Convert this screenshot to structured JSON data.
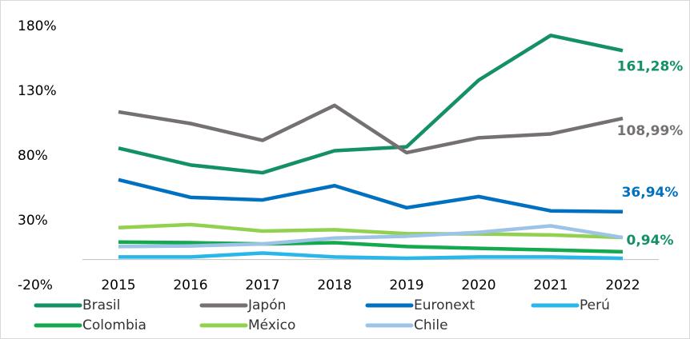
{
  "chart_data": {
    "type": "line",
    "categories": [
      "2015",
      "2016",
      "2017",
      "2018",
      "2019",
      "2020",
      "2021",
      "2022"
    ],
    "ylim": [
      -20,
      180
    ],
    "yticks": [
      {
        "value": -20,
        "label": "-20%"
      },
      {
        "value": 30,
        "label": "30%"
      },
      {
        "value": 80,
        "label": "80%"
      },
      {
        "value": 130,
        "label": "130%"
      },
      {
        "value": 180,
        "label": "180%"
      }
    ],
    "grid": false,
    "legend": "bottom",
    "series": [
      {
        "name": "Brasil",
        "color": "#139066",
        "values": [
          86,
          73,
          67,
          84,
          87,
          138.5,
          173,
          161.28
        ],
        "value_labels": [
          null,
          null,
          null,
          null,
          null,
          null,
          null,
          "161,28%"
        ]
      },
      {
        "name": "Japón",
        "color": "#767171",
        "values": [
          114,
          105,
          92,
          119,
          82.5,
          94,
          97,
          108.99
        ],
        "value_labels": [
          null,
          null,
          null,
          null,
          null,
          null,
          null,
          "108,99%"
        ]
      },
      {
        "name": "Euronext",
        "color": "#0070c0",
        "values": [
          61.6,
          48,
          46,
          57,
          40,
          48.6,
          37.6,
          36.94
        ],
        "value_labels": [
          null,
          null,
          null,
          null,
          null,
          null,
          null,
          "36,94%"
        ]
      },
      {
        "name": "Perú",
        "color": "#29b6e8",
        "values": [
          2,
          2,
          5,
          2,
          1,
          2,
          2,
          0.94
        ],
        "value_labels": [
          null,
          null,
          null,
          null,
          null,
          null,
          null,
          "0,94%"
        ]
      },
      {
        "name": "Colombia",
        "color": "#14a84f",
        "values": [
          13.5,
          13,
          12,
          13,
          10,
          8.6,
          7.4,
          6
        ]
      },
      {
        "name": "México",
        "color": "#92d050",
        "values": [
          24.6,
          27,
          22,
          23,
          20,
          19.7,
          19,
          17
        ]
      },
      {
        "name": "Chile",
        "color": "#9dc3e6",
        "values": [
          10,
          10.5,
          12,
          16.6,
          18,
          21,
          26,
          17
        ]
      }
    ]
  }
}
